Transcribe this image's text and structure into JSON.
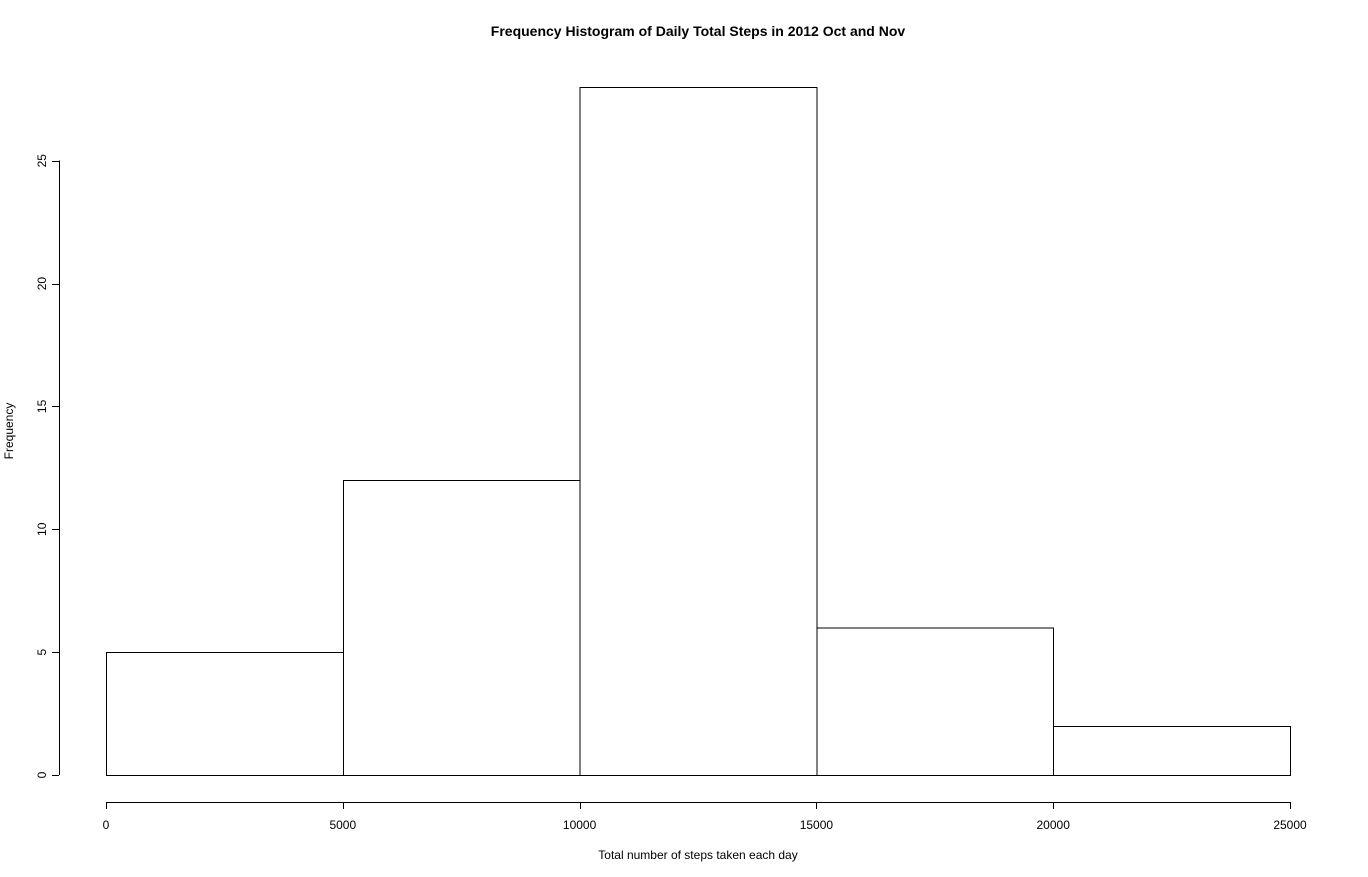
{
  "chart_data": {
    "type": "bar",
    "title": "Frequency Histogram of Daily Total Steps in 2012 Oct and Nov",
    "xlabel": "Total number of steps taken each day",
    "ylabel": "Frequency",
    "bins": [
      {
        "from": 0,
        "to": 5000,
        "count": 5
      },
      {
        "from": 5000,
        "to": 10000,
        "count": 12
      },
      {
        "from": 10000,
        "to": 15000,
        "count": 28
      },
      {
        "from": 15000,
        "to": 20000,
        "count": 6
      },
      {
        "from": 20000,
        "to": 25000,
        "count": 2
      }
    ],
    "xlim": [
      0,
      25000
    ],
    "ylim": [
      0,
      28
    ],
    "x_ticks": [
      0,
      5000,
      10000,
      15000,
      20000,
      25000
    ],
    "y_ticks": [
      0,
      5,
      10,
      15,
      20,
      25
    ],
    "grid": false,
    "bar_fill": "#ffffff",
    "bar_stroke": "#000000"
  }
}
